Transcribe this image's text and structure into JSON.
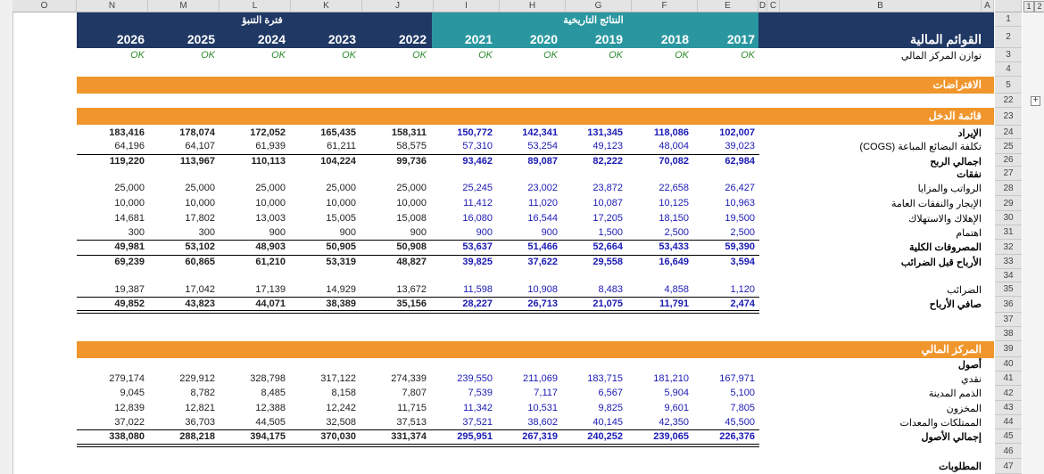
{
  "columns": [
    "O",
    "N",
    "M",
    "L",
    "K",
    "J",
    "I",
    "H",
    "G",
    "F",
    "E",
    "D",
    "C",
    "B",
    "A"
  ],
  "outline_levels": [
    "1",
    "2"
  ],
  "header": {
    "title": "القوائم المالية",
    "projection_label": "فترة التنبؤ",
    "historical_label": "النتائج التاريخية",
    "years": [
      "2026",
      "2025",
      "2024",
      "2023",
      "2022",
      "2021",
      "2020",
      "2019",
      "2018",
      "2017"
    ]
  },
  "balance_check": {
    "label": "توازن المركز المالي",
    "value": "OK"
  },
  "sections": {
    "assumptions": "الافتراضات",
    "income": "قائمة الدخل",
    "position": "المركز المالي",
    "expenses": "نفقات",
    "assets": "أصول",
    "liabilities": "المطلوبات"
  },
  "rows": [
    {
      "num": "24",
      "label": "الإيراد",
      "bold": true,
      "values": [
        "183,416",
        "178,074",
        "172,052",
        "165,435",
        "158,311",
        "150,772",
        "142,341",
        "131,345",
        "118,086",
        "102,007"
      ]
    },
    {
      "num": "25",
      "label": "(COGS) تكلفة البضائع المباعة",
      "bold": false,
      "values": [
        "64,196",
        "64,107",
        "61,939",
        "61,211",
        "58,575",
        "57,310",
        "53,254",
        "49,123",
        "48,004",
        "39,023"
      ]
    },
    {
      "num": "26",
      "label": "اجمالي الربح",
      "bold": true,
      "values": [
        "119,220",
        "113,967",
        "110,113",
        "104,224",
        "99,736",
        "93,462",
        "89,087",
        "82,222",
        "70,082",
        "62,984"
      ]
    },
    {
      "num": "28",
      "label": "الرواتب والمزايا",
      "bold": false,
      "values": [
        "25,000",
        "25,000",
        "25,000",
        "25,000",
        "25,000",
        "25,245",
        "23,002",
        "23,872",
        "22,658",
        "26,427"
      ]
    },
    {
      "num": "29",
      "label": "الإيجار والنفقات العامة",
      "bold": false,
      "values": [
        "10,000",
        "10,000",
        "10,000",
        "10,000",
        "10,000",
        "11,412",
        "11,020",
        "10,087",
        "10,125",
        "10,963"
      ]
    },
    {
      "num": "30",
      "label": "الإهلاك والاستهلاك",
      "bold": false,
      "values": [
        "14,681",
        "17,802",
        "13,003",
        "15,005",
        "15,008",
        "16,080",
        "16,544",
        "17,205",
        "18,150",
        "19,500"
      ]
    },
    {
      "num": "31",
      "label": "اهتمام",
      "bold": false,
      "values": [
        "300",
        "300",
        "900",
        "900",
        "900",
        "900",
        "900",
        "1,500",
        "2,500",
        "2,500"
      ]
    },
    {
      "num": "32",
      "label": "المصروفات الكلية",
      "bold": true,
      "values": [
        "49,981",
        "53,102",
        "48,903",
        "50,905",
        "50,908",
        "53,637",
        "51,466",
        "52,664",
        "53,433",
        "59,390"
      ]
    },
    {
      "num": "33",
      "label": "الأرباح قبل الضرائب",
      "bold": true,
      "values": [
        "69,239",
        "60,865",
        "61,210",
        "53,319",
        "48,827",
        "39,825",
        "37,622",
        "29,558",
        "16,649",
        "3,594"
      ]
    },
    {
      "num": "35",
      "label": "الضرائب",
      "bold": false,
      "values": [
        "19,387",
        "17,042",
        "17,139",
        "14,929",
        "13,672",
        "11,598",
        "10,908",
        "8,483",
        "4,858",
        "1,120"
      ]
    },
    {
      "num": "36",
      "label": "صافي الأرباح",
      "bold": true,
      "values": [
        "49,852",
        "43,823",
        "44,071",
        "38,389",
        "35,156",
        "28,227",
        "26,713",
        "21,075",
        "11,791",
        "2,474"
      ]
    },
    {
      "num": "41",
      "label": "نقدي",
      "bold": false,
      "values": [
        "279,174",
        "229,912",
        "328,798",
        "317,122",
        "274,339",
        "239,550",
        "211,069",
        "183,715",
        "181,210",
        "167,971"
      ]
    },
    {
      "num": "42",
      "label": "الذمم المدينة",
      "bold": false,
      "values": [
        "9,045",
        "8,782",
        "8,485",
        "8,158",
        "7,807",
        "7,539",
        "7,117",
        "6,567",
        "5,904",
        "5,100"
      ]
    },
    {
      "num": "43",
      "label": "المخزون",
      "bold": false,
      "values": [
        "12,839",
        "12,821",
        "12,388",
        "12,242",
        "11,715",
        "11,342",
        "10,531",
        "9,825",
        "9,601",
        "7,805"
      ]
    },
    {
      "num": "44",
      "label": "الممتلكات والمعدات",
      "bold": false,
      "values": [
        "37,022",
        "36,703",
        "44,505",
        "32,508",
        "37,513",
        "37,521",
        "38,602",
        "40,145",
        "42,350",
        "45,500"
      ]
    },
    {
      "num": "45",
      "label": "إجمالي الأصول",
      "bold": true,
      "values": [
        "338,080",
        "288,218",
        "394,175",
        "370,030",
        "331,374",
        "295,951",
        "267,319",
        "240,252",
        "239,065",
        "226,376"
      ]
    }
  ],
  "row_numbers": [
    "1",
    "2",
    "3",
    "4",
    "5",
    "22",
    "23",
    "24",
    "25",
    "26",
    "27",
    "28",
    "29",
    "30",
    "31",
    "32",
    "33",
    "34",
    "35",
    "36",
    "37",
    "38",
    "39",
    "40",
    "41",
    "42",
    "43",
    "44",
    "45",
    "46",
    "47"
  ],
  "colors": {
    "navy": "#1f3864",
    "teal": "#2a97a0",
    "orange": "#f0962d",
    "historical_text": "#1a1ab4",
    "ok": "#2e8b2e"
  }
}
